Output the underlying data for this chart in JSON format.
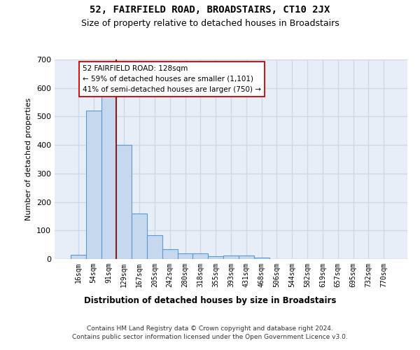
{
  "title": "52, FAIRFIELD ROAD, BROADSTAIRS, CT10 2JX",
  "subtitle": "Size of property relative to detached houses in Broadstairs",
  "xlabel": "Distribution of detached houses by size in Broadstairs",
  "ylabel": "Number of detached properties",
  "bar_color": "#c5d8ee",
  "bar_edge_color": "#5b9bd5",
  "background_color": "#e8eef8",
  "grid_color": "#d0d8e8",
  "categories": [
    "16sqm",
    "54sqm",
    "91sqm",
    "129sqm",
    "167sqm",
    "205sqm",
    "242sqm",
    "280sqm",
    "318sqm",
    "355sqm",
    "393sqm",
    "431sqm",
    "468sqm",
    "506sqm",
    "544sqm",
    "582sqm",
    "619sqm",
    "657sqm",
    "695sqm",
    "732sqm",
    "770sqm"
  ],
  "values": [
    15,
    520,
    585,
    400,
    160,
    83,
    35,
    20,
    20,
    10,
    13,
    13,
    5,
    0,
    0,
    0,
    0,
    0,
    0,
    0,
    0
  ],
  "ylim": [
    0,
    700
  ],
  "yticks": [
    0,
    100,
    200,
    300,
    400,
    500,
    600,
    700
  ],
  "property_line_x": 2.5,
  "property_line_color": "#8b1a1a",
  "annotation_text": "52 FAIRFIELD ROAD: 128sqm\n← 59% of detached houses are smaller (1,101)\n41% of semi-detached houses are larger (750) →",
  "annotation_box_facecolor": "#ffffff",
  "annotation_box_edgecolor": "#cc0000",
  "footer_line1": "Contains HM Land Registry data © Crown copyright and database right 2024.",
  "footer_line2": "Contains public sector information licensed under the Open Government Licence v3.0."
}
